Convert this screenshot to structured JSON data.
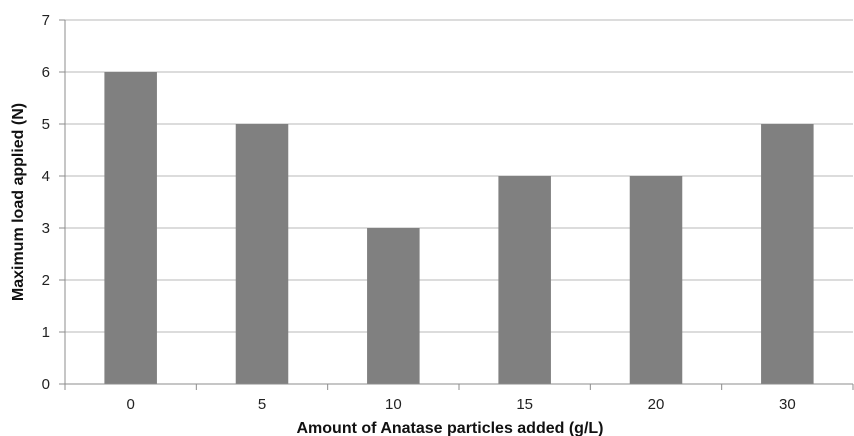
{
  "chart_data": {
    "type": "bar",
    "title": "",
    "xlabel": "Amount of Anatase particles added (g/L)",
    "ylabel": "Maximum load applied (N)",
    "categories": [
      "0",
      "5",
      "10",
      "15",
      "20",
      "30"
    ],
    "values": [
      6,
      5,
      3,
      4,
      4,
      5
    ],
    "ylim": [
      0,
      7
    ],
    "yticks": [
      "0",
      "1",
      "2",
      "3",
      "4",
      "5",
      "6",
      "7"
    ],
    "grid": true,
    "legend": "none",
    "colors": {
      "bar": "#808080",
      "grid": "#b8b8b8",
      "axis": "#8c8c8c"
    }
  }
}
